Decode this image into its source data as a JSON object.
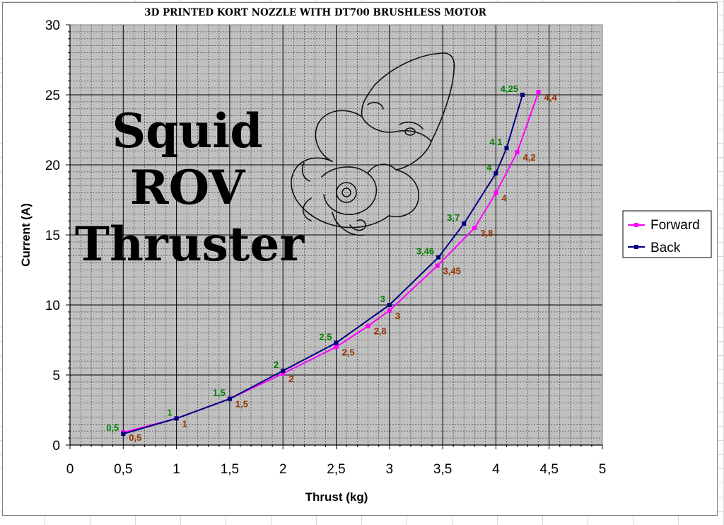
{
  "chart_data": {
    "type": "line",
    "title": "3D PRINTED KORT NOZZLE WITH DT700 BRUSHLESS MOTOR",
    "xlabel": "Thrust (kg)",
    "ylabel": "Current (A)",
    "xlim": [
      0,
      5
    ],
    "ylim": [
      0,
      30
    ],
    "x_ticks": [
      "0",
      "0,5",
      "1",
      "1,5",
      "2",
      "2,5",
      "3",
      "3,5",
      "4",
      "4,5",
      "5"
    ],
    "y_ticks": [
      "0",
      "5",
      "10",
      "15",
      "20",
      "25",
      "30"
    ],
    "grid": true,
    "legend_position": "right",
    "plot_background": "#c0c0c0",
    "series": [
      {
        "name": "Forward",
        "color": "#ff00ff",
        "label_color": "#993300",
        "x": [
          0.5,
          1,
          1.5,
          2,
          2.5,
          2.8,
          3,
          3.45,
          3.8,
          4,
          4.2,
          4.4
        ],
        "y": [
          0.9,
          1.9,
          3.3,
          5.1,
          7.0,
          8.5,
          9.6,
          12.8,
          15.5,
          18.0,
          20.9,
          25.2
        ],
        "labels": [
          "0,5",
          "1",
          "1,5",
          "2",
          "2,5",
          "2,8",
          "3",
          "3,45",
          "3,8",
          "4",
          "4,2",
          "4,4"
        ]
      },
      {
        "name": "Back",
        "color": "#000080",
        "label_color": "#008000",
        "x": [
          0.5,
          1,
          1.5,
          2,
          2.5,
          3,
          3.46,
          3.7,
          4,
          4.1,
          4.25
        ],
        "y": [
          0.8,
          1.9,
          3.3,
          5.3,
          7.3,
          10.0,
          13.4,
          15.8,
          19.4,
          21.2,
          25.0
        ],
        "labels": [
          "0,5",
          "1",
          "1,5",
          "2",
          "2,5",
          "3",
          "3,46",
          "3,7",
          "4",
          "4,1",
          "4,25"
        ]
      }
    ]
  },
  "overlay": {
    "lines": [
      "Squid",
      "ROV",
      "Thruster"
    ],
    "logo_name": "squid-logo"
  }
}
